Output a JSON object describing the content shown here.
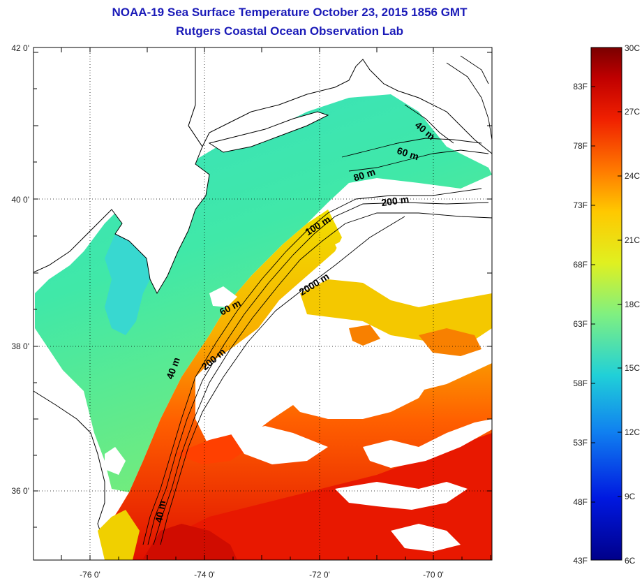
{
  "title": "NOAA-19 Sea Surface Temperature October 23, 2015 1856 GMT",
  "subtitle": "Rutgers Coastal Ocean Observation Lab",
  "lat_ticks": [
    "42 0'",
    "40 0'",
    "38 0'",
    "36 0'"
  ],
  "lon_ticks": [
    "-76 0'",
    "-74 0'",
    "-72 0'",
    "-70 0'"
  ],
  "contour_labels": [
    "40 m",
    "60 m",
    "80 m",
    "200 m",
    "100 m",
    "2000 m",
    "60 m",
    "200 m",
    "40 m",
    "40 m"
  ],
  "colorbar": {
    "fahrenheit": [
      "83F",
      "78F",
      "73F",
      "68F",
      "63F",
      "58F",
      "53F",
      "48F",
      "43F"
    ],
    "celsius": [
      "30C",
      "27C",
      "24C",
      "21C",
      "18C",
      "15C",
      "12C",
      "9C",
      "6C"
    ],
    "colors": [
      "#7a0000",
      "#c80000",
      "#ff3000",
      "#ff8a00",
      "#ffd000",
      "#e8f000",
      "#a0f000",
      "#40e8a0",
      "#20c8d8",
      "#1090f0",
      "#0040f0",
      "#0000b0"
    ]
  },
  "colors": {
    "title": "#1a1ab8",
    "land": "#ffffff",
    "cloud": "#ffffff"
  }
}
